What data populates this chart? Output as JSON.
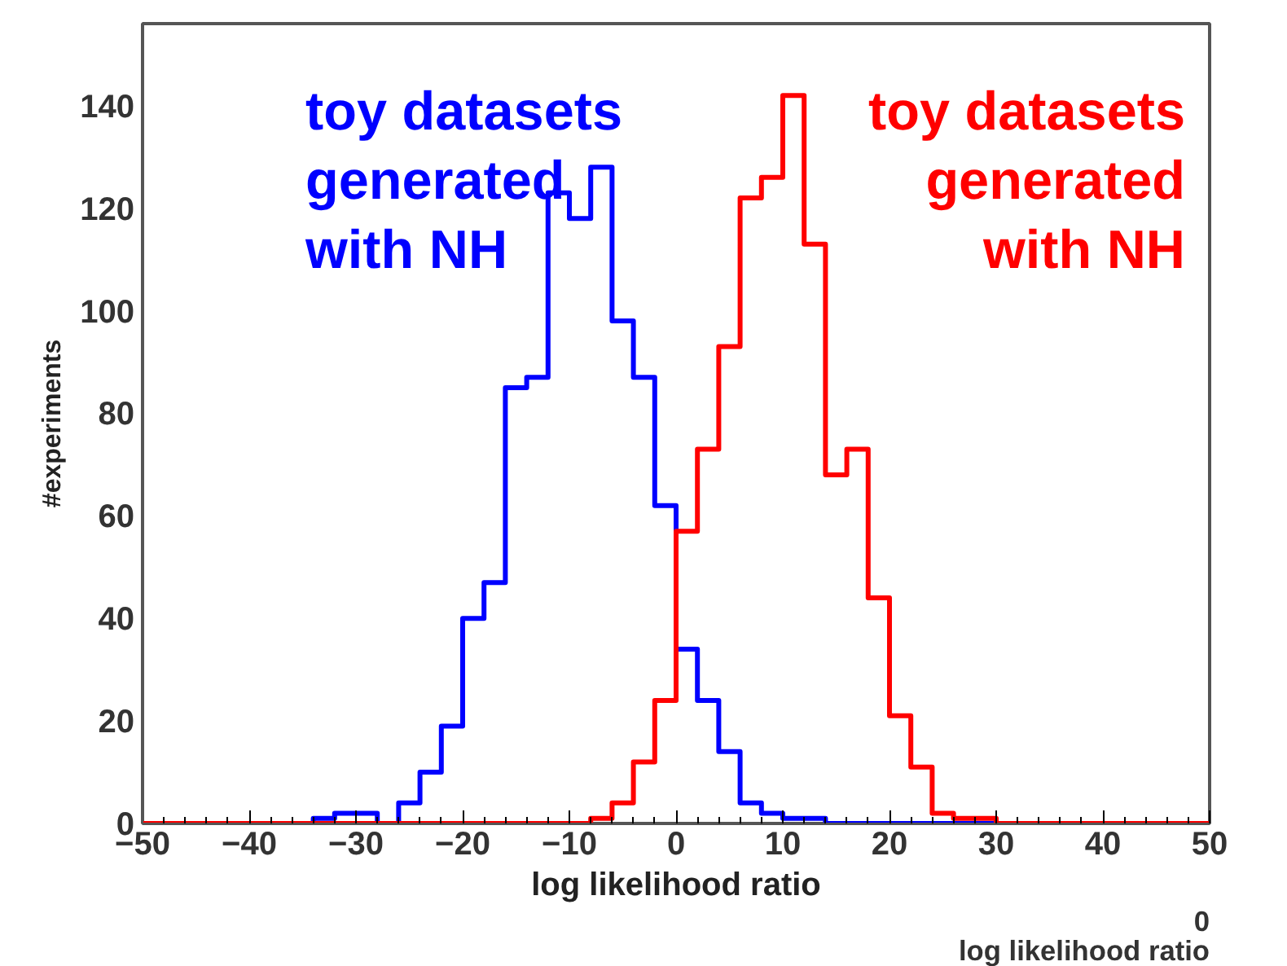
{
  "chart_data": {
    "type": "histogram",
    "xlabel": "log likelihood ratio",
    "ylabel": "#experiments",
    "bins": [
      -50,
      -48,
      -46,
      -44,
      -42,
      -40,
      -38,
      -36,
      -34,
      -32,
      -30,
      -28,
      -26,
      -24,
      -22,
      -20,
      -18,
      -16,
      -14,
      -12,
      -10,
      -8,
      -6,
      -4,
      -2,
      0,
      2,
      4,
      6,
      8,
      10,
      12,
      14,
      16,
      18,
      20,
      22,
      24,
      26,
      28,
      30,
      32,
      34,
      36,
      38,
      40,
      42,
      44,
      46,
      48,
      50
    ],
    "series": [
      {
        "name": "toy datasets\ngenerated\nwith NH",
        "color": "#0000ff",
        "values": [
          0,
          0,
          0,
          0,
          0,
          0,
          0,
          0,
          1,
          2,
          2,
          0,
          4,
          10,
          19,
          40,
          47,
          85,
          87,
          123,
          118,
          128,
          98,
          87,
          62,
          34,
          24,
          14,
          4,
          2,
          1,
          1,
          0,
          0,
          0,
          0,
          0,
          0,
          0,
          0,
          0,
          0,
          0,
          0,
          0,
          0,
          0,
          0,
          0,
          0
        ]
      },
      {
        "name": "toy datasets\ngenerated\nwith NH",
        "color": "#ff0000",
        "values": [
          0,
          0,
          0,
          0,
          0,
          0,
          0,
          0,
          0,
          0,
          0,
          0,
          0,
          0,
          0,
          0,
          0,
          0,
          0,
          0,
          0,
          1,
          4,
          12,
          24,
          57,
          73,
          93,
          122,
          126,
          142,
          113,
          68,
          73,
          44,
          21,
          11,
          2,
          1,
          1,
          0,
          0,
          0,
          0,
          0,
          0,
          0,
          0,
          0,
          0
        ]
      }
    ],
    "xlim": [
      -50,
      50
    ],
    "xticks": [
      -50,
      -40,
      -30,
      -20,
      -10,
      0,
      10,
      20,
      30,
      40,
      50
    ],
    "ylim": [
      0,
      156
    ],
    "yticks": [
      0,
      20,
      40,
      60,
      80,
      100,
      120,
      140
    ],
    "grid": false,
    "annotations": [
      "0",
      "log likelihood ratio"
    ]
  }
}
